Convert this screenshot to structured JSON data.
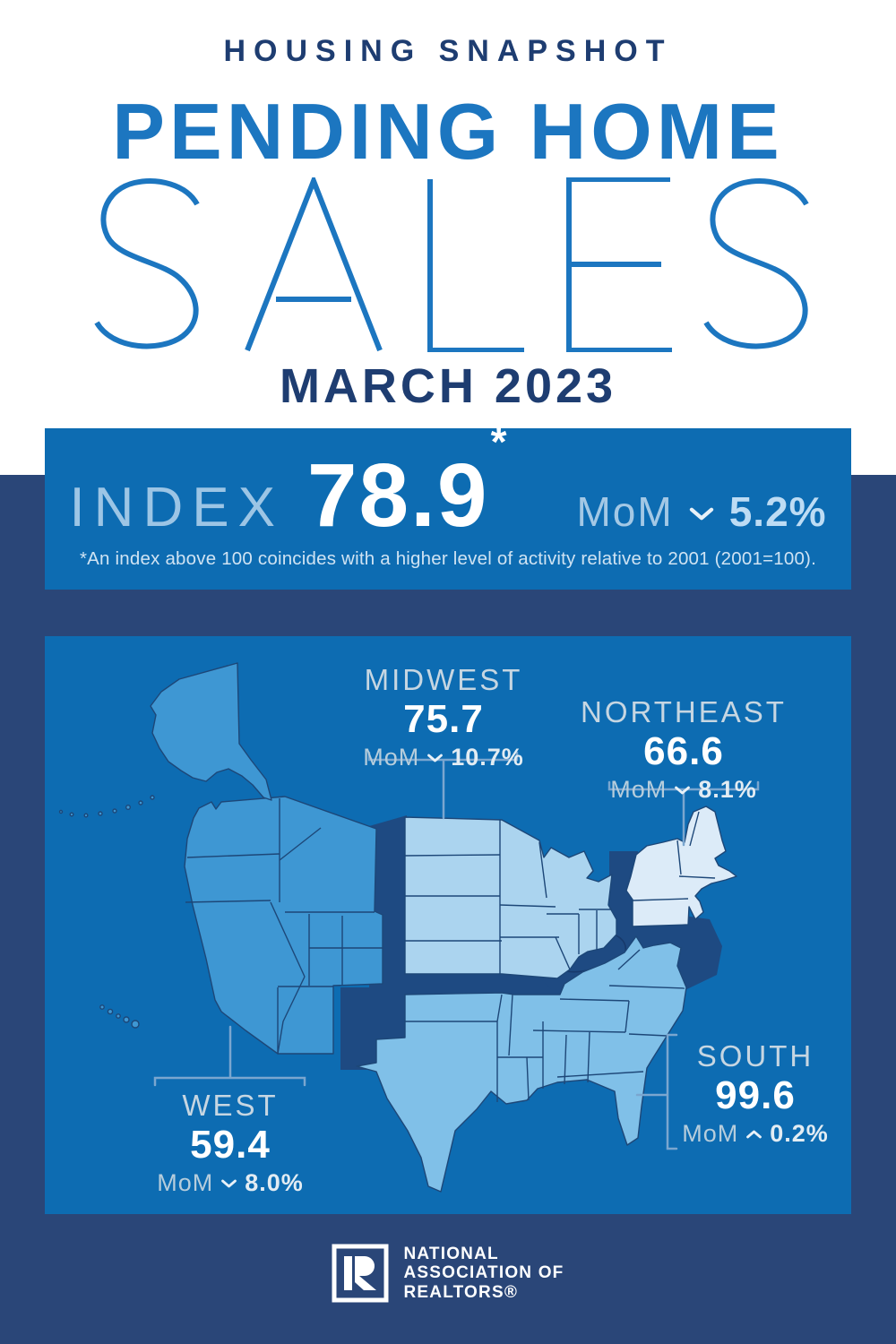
{
  "header": {
    "kicker": "HOUSING SNAPSHOT",
    "title_line1": "PENDING HOME",
    "title_line2": "SALES",
    "date": "MARCH 2023"
  },
  "index_panel": {
    "label": "INDEX",
    "value": "78.9",
    "asterisk": "*",
    "mom_label": "MoM",
    "mom_direction": "down",
    "mom_value": "5.2%",
    "footnote": "*An index above 100 coincides with a higher level of activity relative to 2001 (2001=100)."
  },
  "map": {
    "regions": [
      {
        "id": "midwest",
        "name": "MIDWEST",
        "value": "75.7",
        "mom_label": "MoM",
        "mom_direction": "down",
        "mom_value": "10.7%"
      },
      {
        "id": "northeast",
        "name": "NORTHEAST",
        "value": "66.6",
        "mom_label": "MoM",
        "mom_direction": "down",
        "mom_value": "8.1%"
      },
      {
        "id": "west",
        "name": "WEST",
        "value": "59.4",
        "mom_label": "MoM",
        "mom_direction": "down",
        "mom_value": "8.0%"
      },
      {
        "id": "south",
        "name": "SOUTH",
        "value": "99.6",
        "mom_label": "MoM",
        "mom_direction": "up",
        "mom_value": "0.2%"
      }
    ]
  },
  "footer": {
    "org_line1": "NATIONAL",
    "org_line2": "ASSOCIATION OF",
    "org_line3": "REALTORS®"
  },
  "colors": {
    "page_bg": "#2a4678",
    "panel": "#0d6cb2",
    "backing": "#1e4a82",
    "west": "#3e97d3",
    "midwest": "#abd4ef",
    "northeast": "#dcebf8",
    "south": "#80c0e8",
    "state_border": "#1d4778",
    "bracket": "#7aa6cf",
    "title_blue": "#1c76c0",
    "title_navy": "#1e3d71"
  }
}
